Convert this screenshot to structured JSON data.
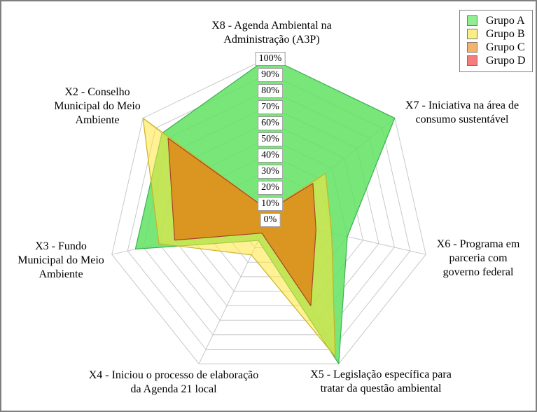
{
  "chart_data": {
    "type": "radar",
    "title": "",
    "grid_color": "#c8c8c8",
    "radial_axis": {
      "min": 0,
      "max": 100,
      "step": 10,
      "unit": "%",
      "ticks": [
        "0%",
        "10%",
        "20%",
        "30%",
        "40%",
        "50%",
        "60%",
        "70%",
        "80%",
        "90%",
        "100%"
      ]
    },
    "axes": [
      {
        "id": "X8",
        "label": "X8 - Agenda Ambiental na Administração (A3P)",
        "label_lines": [
          "X8 - Agenda Ambiental na",
          "Administração (A3P)"
        ]
      },
      {
        "id": "X7",
        "label": "X7 - Iniciativa na área de consumo sustentável",
        "label_lines": [
          "X7 - Iniciativa na área de",
          "consumo sustentável"
        ]
      },
      {
        "id": "X6",
        "label": "X6 - Programa em parceria com governo federal",
        "label_lines": [
          "X6 - Programa em",
          "parceria com",
          "governo federal"
        ]
      },
      {
        "id": "X5",
        "label": "X5 - Legislação específica para tratar da questão ambiental",
        "label_lines": [
          "X5 - Legislação específica para",
          "tratar da questão ambiental"
        ]
      },
      {
        "id": "X4",
        "label": "X4 - Iniciou o processo de elaboração da Agenda 21 local",
        "label_lines": [
          "X4 - Iniciou o processo de elaboração",
          "da Agenda 21 local"
        ]
      },
      {
        "id": "X3",
        "label": "X3 - Fundo Municipal do Meio Ambiente",
        "label_lines": [
          "X3 - Fundo",
          "Municipal do Meio",
          "Ambiente"
        ]
      },
      {
        "id": "X2",
        "label": "X2 - Conselho Municipal do Meio Ambiente",
        "label_lines": [
          "X2 - Conselho",
          "Municipal do Meio",
          "Ambiente"
        ]
      }
    ],
    "axis_order_note": "series values are aligned with axes order: X8, X7, X6, X5, X4, X3, X2 (clockwise from top)",
    "series": [
      {
        "name": "Grupo A",
        "values": [
          100,
          100,
          50,
          100,
          15,
          85,
          85
        ],
        "fill": "#60e260",
        "fill_opacity": 0.85,
        "stroke": "#3cb054",
        "swatch": "#90ee90",
        "swatch_style": "background:#90ee90"
      },
      {
        "name": "Grupo B",
        "values": [
          5,
          45,
          40,
          95,
          25,
          70,
          100
        ],
        "fill": "#ffe63c",
        "fill_opacity": 0.55,
        "stroke": "#c9b227",
        "swatch": "#fbee85",
        "swatch_style": "background:#fbee85"
      },
      {
        "name": "Grupo C",
        "values": [
          5,
          35,
          30,
          60,
          10,
          60,
          80
        ],
        "fill": "#e08214",
        "fill_opacity": 0.8,
        "stroke": "#a8432a",
        "swatch": "#f6b26b",
        "swatch_style": "background:#f6b26b"
      },
      {
        "name": "Grupo D",
        "values": [
          0,
          0,
          0,
          0,
          0,
          0,
          0
        ],
        "fill": "#f05050",
        "fill_opacity": 0.7,
        "stroke": "#c0392b",
        "swatch": "#f47c7c",
        "swatch_style": "background:#f47c7c"
      }
    ],
    "legend": {
      "position": "top-right",
      "entries": [
        "Grupo A",
        "Grupo B",
        "Grupo C",
        "Grupo D"
      ]
    }
  }
}
